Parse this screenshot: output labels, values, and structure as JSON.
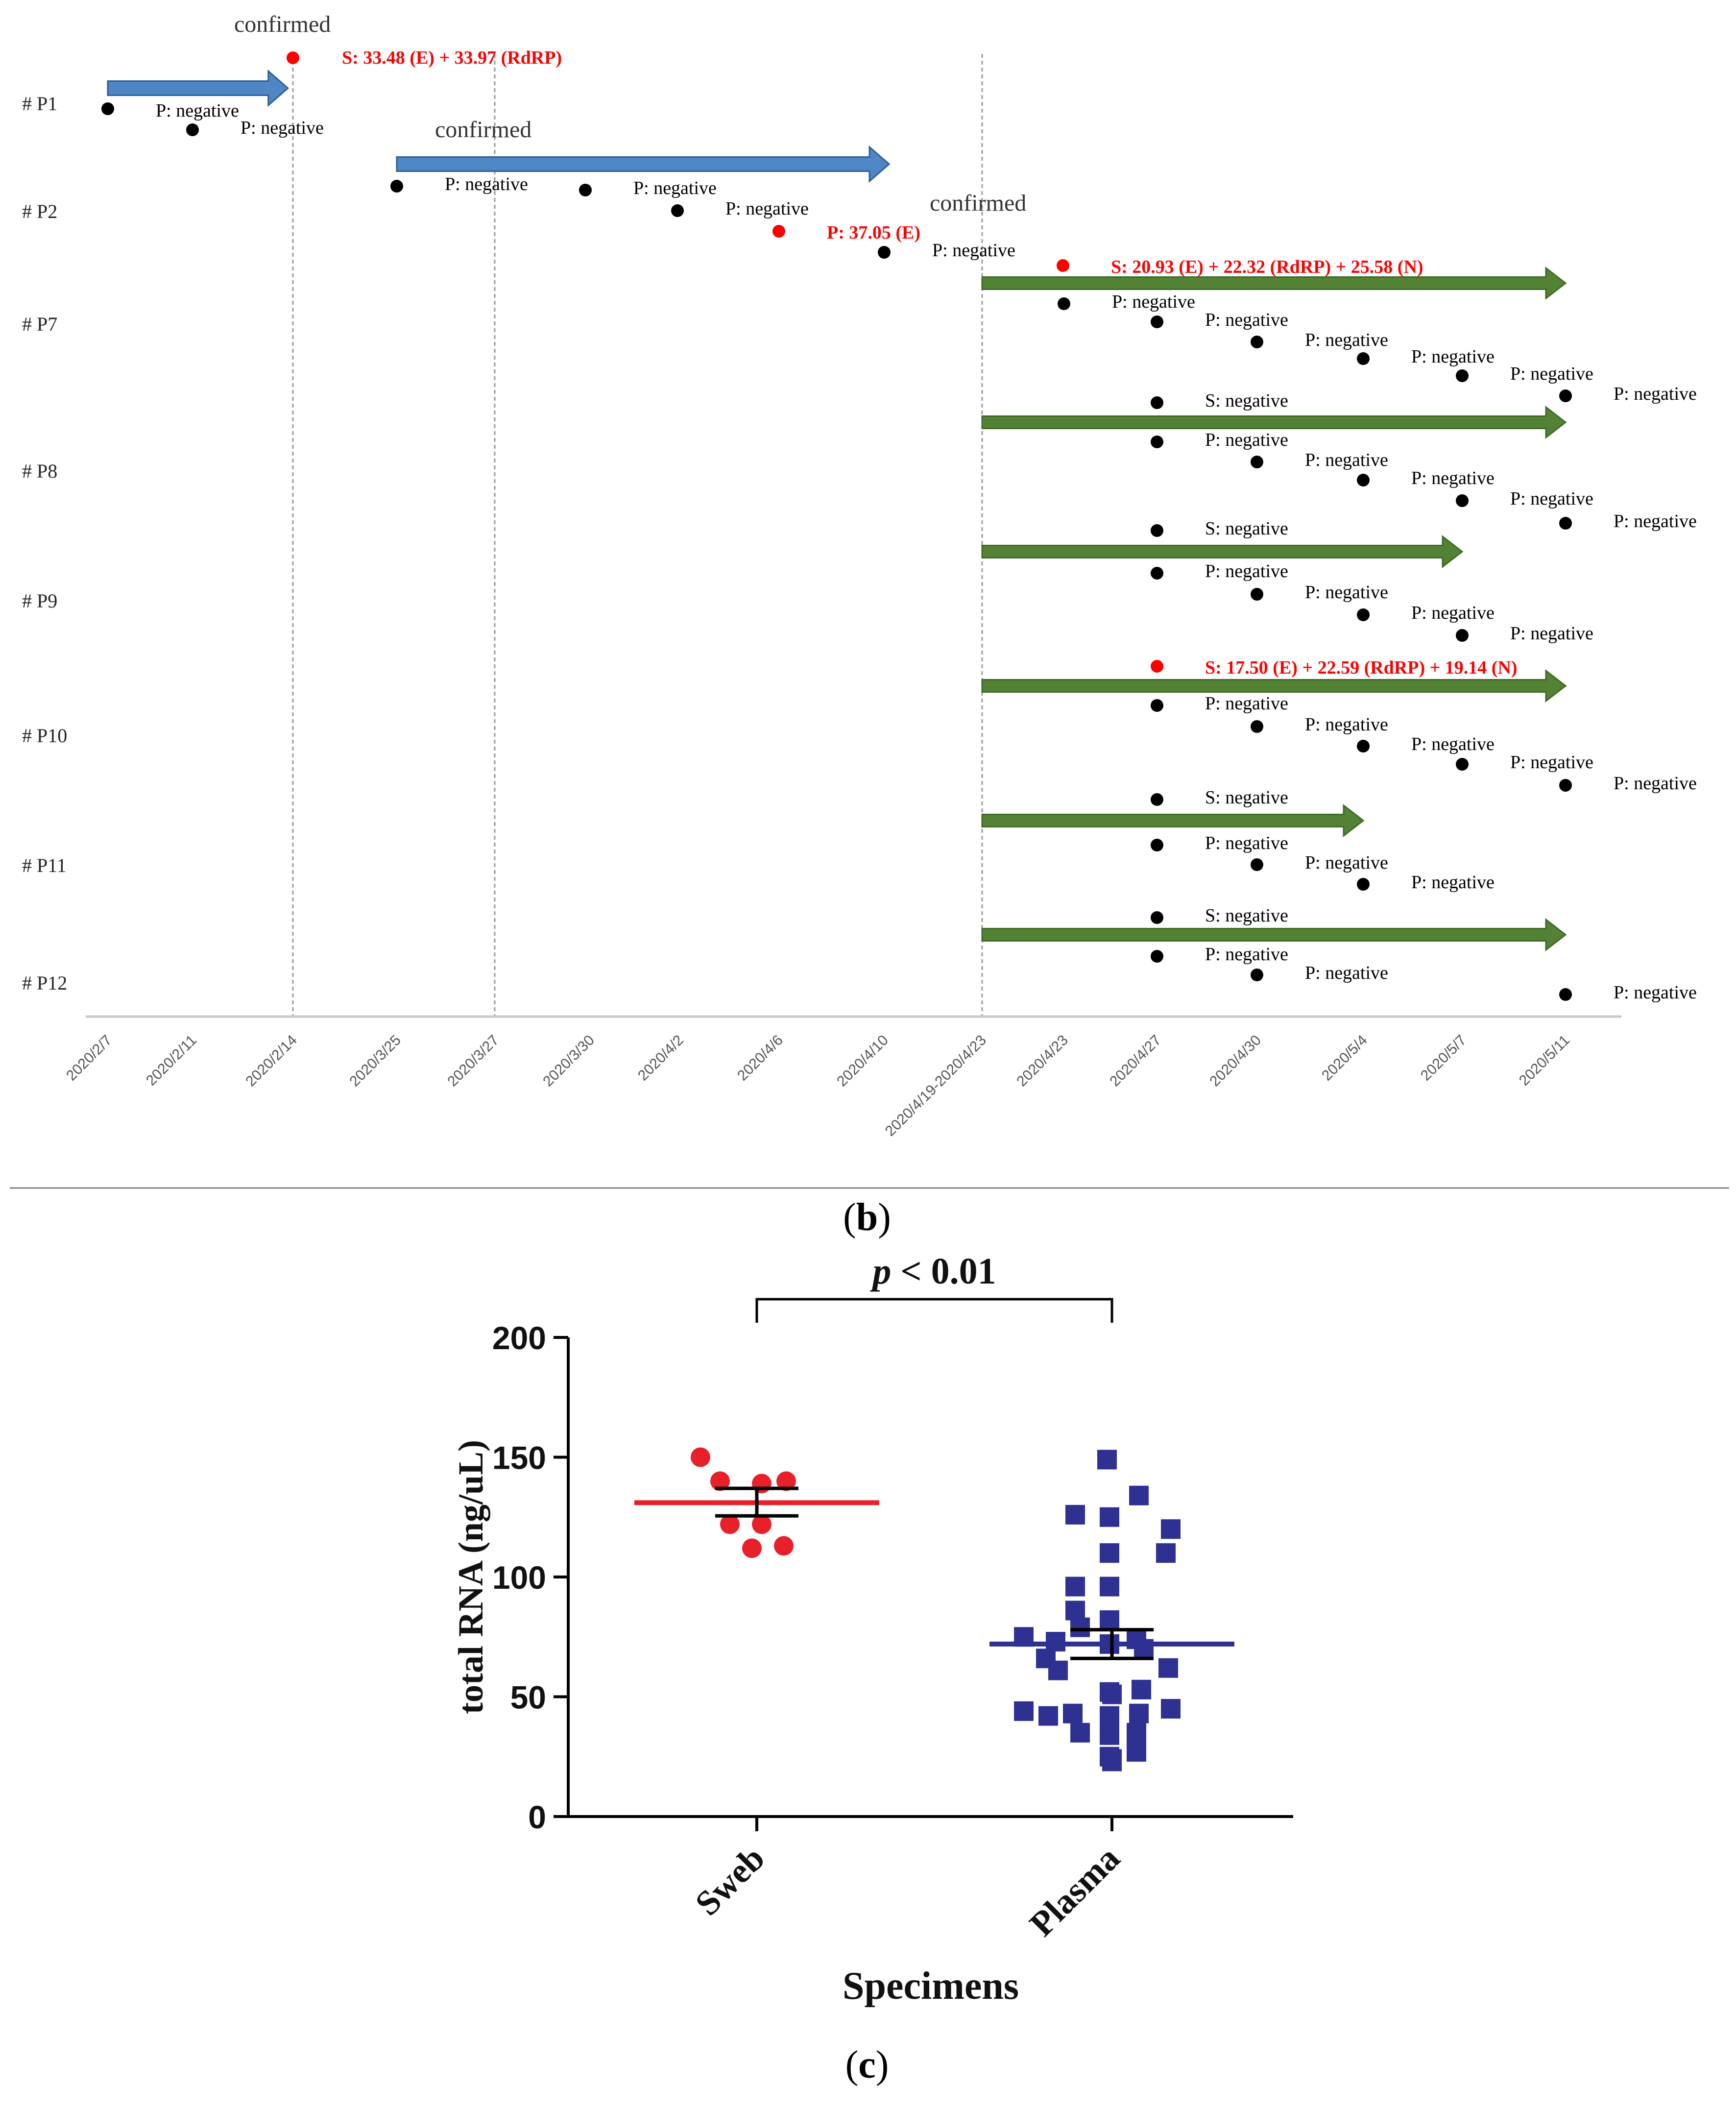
{
  "panel_b_label": "b",
  "panel_c_label": "c",
  "chart_data": [
    {
      "type": "timeline",
      "x_categories": [
        "2020/2/7",
        "2020/2/11",
        "2020/2/14",
        "2020/3/25",
        "2020/3/27",
        "2020/3/30",
        "2020/4/2",
        "2020/4/6",
        "2020/4/10",
        "2020/4/19-2020/4/23",
        "2020/4/23",
        "2020/4/27",
        "2020/4/30",
        "2020/5/4",
        "2020/5/7",
        "2020/5/11"
      ],
      "row_labels": [
        "# P1",
        "# P2",
        "# P7",
        "# P8",
        "# P9",
        "# P10",
        "# P11",
        "# P12"
      ],
      "vertical_guides": [
        2,
        4,
        9
      ],
      "arrows": [
        {
          "color": "#4f86c6",
          "from": 0,
          "to": 1.95,
          "row": "P1",
          "label": "confirmed"
        },
        {
          "color": "#4f86c6",
          "from": 3,
          "to": 8.05,
          "row": "P2",
          "label": "confirmed"
        },
        {
          "color": "#548235",
          "from": 9,
          "to": 15,
          "row": "P7",
          "label": "confirmed"
        },
        {
          "color": "#548235",
          "from": 9,
          "to": 15,
          "row": "P8"
        },
        {
          "color": "#548235",
          "from": 9,
          "to": 14,
          "row": "P9"
        },
        {
          "color": "#548235",
          "from": 9,
          "to": 15,
          "row": "P10"
        },
        {
          "color": "#548235",
          "from": 9,
          "to": 13,
          "row": "P11"
        },
        {
          "color": "#548235",
          "from": 9,
          "to": 15,
          "row": "P12"
        }
      ],
      "points": [
        {
          "x": 0,
          "row": "P1",
          "color": "black",
          "text": "P: negative"
        },
        {
          "x": 1,
          "row": "P1",
          "color": "black",
          "text": "P: negative"
        },
        {
          "x": 2,
          "row": "P1",
          "color": "red",
          "text": "S: 33.48 (E) + 33.97 (RdRP)"
        },
        {
          "x": 3,
          "row": "P2",
          "color": "black",
          "text": "P: negative"
        },
        {
          "x": 5,
          "row": "P2",
          "color": "black",
          "text": "P: negative"
        },
        {
          "x": 6,
          "row": "P2",
          "color": "black",
          "text": "P: negative"
        },
        {
          "x": 7,
          "row": "P2",
          "color": "red",
          "text": "P: 37.05 (E)"
        },
        {
          "x": 8,
          "row": "P2",
          "color": "black",
          "text": "P: negative"
        },
        {
          "x": 10,
          "row": "P7",
          "color": "red",
          "text": "S: 20.93 (E) + 22.32 (RdRP) + 25.58 (N)"
        },
        {
          "x": 10,
          "row": "P7",
          "color": "black",
          "text": "P: negative"
        },
        {
          "x": 11,
          "row": "P7",
          "color": "black",
          "text": "P: negative"
        },
        {
          "x": 12,
          "row": "P7",
          "color": "black",
          "text": "P: negative"
        },
        {
          "x": 13,
          "row": "P7",
          "color": "black",
          "text": "P: negative"
        },
        {
          "x": 14,
          "row": "P7",
          "color": "black",
          "text": "P: negative"
        },
        {
          "x": 15,
          "row": "P7",
          "color": "black",
          "text": "P: negative"
        },
        {
          "x": 11,
          "row": "P8",
          "color": "black",
          "text": "S: negative"
        },
        {
          "x": 11,
          "row": "P8",
          "color": "black",
          "text": "P: negative"
        },
        {
          "x": 12,
          "row": "P8",
          "color": "black",
          "text": "P: negative"
        },
        {
          "x": 13,
          "row": "P8",
          "color": "black",
          "text": "P: negative"
        },
        {
          "x": 14,
          "row": "P8",
          "color": "black",
          "text": "P: negative"
        },
        {
          "x": 15,
          "row": "P8",
          "color": "black",
          "text": "P: negative"
        },
        {
          "x": 11,
          "row": "P9",
          "color": "black",
          "text": "S: negative"
        },
        {
          "x": 11,
          "row": "P9",
          "color": "black",
          "text": "P: negative"
        },
        {
          "x": 12,
          "row": "P9",
          "color": "black",
          "text": "P: negative"
        },
        {
          "x": 13,
          "row": "P9",
          "color": "black",
          "text": "P: negative"
        },
        {
          "x": 14,
          "row": "P9",
          "color": "black",
          "text": "P: negative"
        },
        {
          "x": 11,
          "row": "P10",
          "color": "red",
          "text": "S: 17.50 (E) + 22.59 (RdRP) + 19.14 (N)"
        },
        {
          "x": 11,
          "row": "P10",
          "color": "black",
          "text": "P: negative"
        },
        {
          "x": 12,
          "row": "P10",
          "color": "black",
          "text": "P: negative"
        },
        {
          "x": 13,
          "row": "P10",
          "color": "black",
          "text": "P: negative"
        },
        {
          "x": 14,
          "row": "P10",
          "color": "black",
          "text": "P: negative"
        },
        {
          "x": 15,
          "row": "P10",
          "color": "black",
          "text": "P: negative"
        },
        {
          "x": 11,
          "row": "P11",
          "color": "black",
          "text": "S: negative"
        },
        {
          "x": 11,
          "row": "P11",
          "color": "black",
          "text": "P: negative"
        },
        {
          "x": 12,
          "row": "P11",
          "color": "black",
          "text": "P: negative"
        },
        {
          "x": 13,
          "row": "P11",
          "color": "black",
          "text": "P: negative"
        },
        {
          "x": 11,
          "row": "P12",
          "color": "black",
          "text": "S: negative"
        },
        {
          "x": 11,
          "row": "P12",
          "color": "black",
          "text": "P: negative"
        },
        {
          "x": 12,
          "row": "P12",
          "color": "black",
          "text": "P: negative"
        },
        {
          "x": 15,
          "row": "P12",
          "color": "black",
          "text": "P: negative"
        }
      ]
    },
    {
      "type": "scatter",
      "xlabel": "Specimens",
      "ylabel": "total RNA (ng/uL)",
      "categories": [
        "Sweb",
        "Plasma"
      ],
      "ylim": [
        0,
        200
      ],
      "yticks": [
        0,
        50,
        100,
        150,
        200
      ],
      "annotation": {
        "italic": "p",
        "text": " < 0.01"
      },
      "series": [
        {
          "name": "Sweb",
          "color": "#e8202a",
          "marker": "circle",
          "mean": 131,
          "sem_low": 125.5,
          "sem_high": 137,
          "values": [
            150,
            140,
            139,
            140,
            122,
            122,
            112,
            113
          ]
        },
        {
          "name": "Plasma",
          "color": "#2e3192",
          "marker": "square",
          "mean": 72,
          "sem_low": 66,
          "sem_high": 78,
          "values": [
            149,
            134,
            126,
            125,
            120,
            110,
            110,
            96,
            96,
            86,
            82,
            79,
            75,
            74,
            73,
            72,
            70,
            66,
            62,
            61,
            53,
            52,
            51,
            45,
            44,
            43,
            43,
            42,
            42,
            35,
            35,
            34,
            27,
            25,
            24,
            23
          ]
        }
      ]
    }
  ]
}
